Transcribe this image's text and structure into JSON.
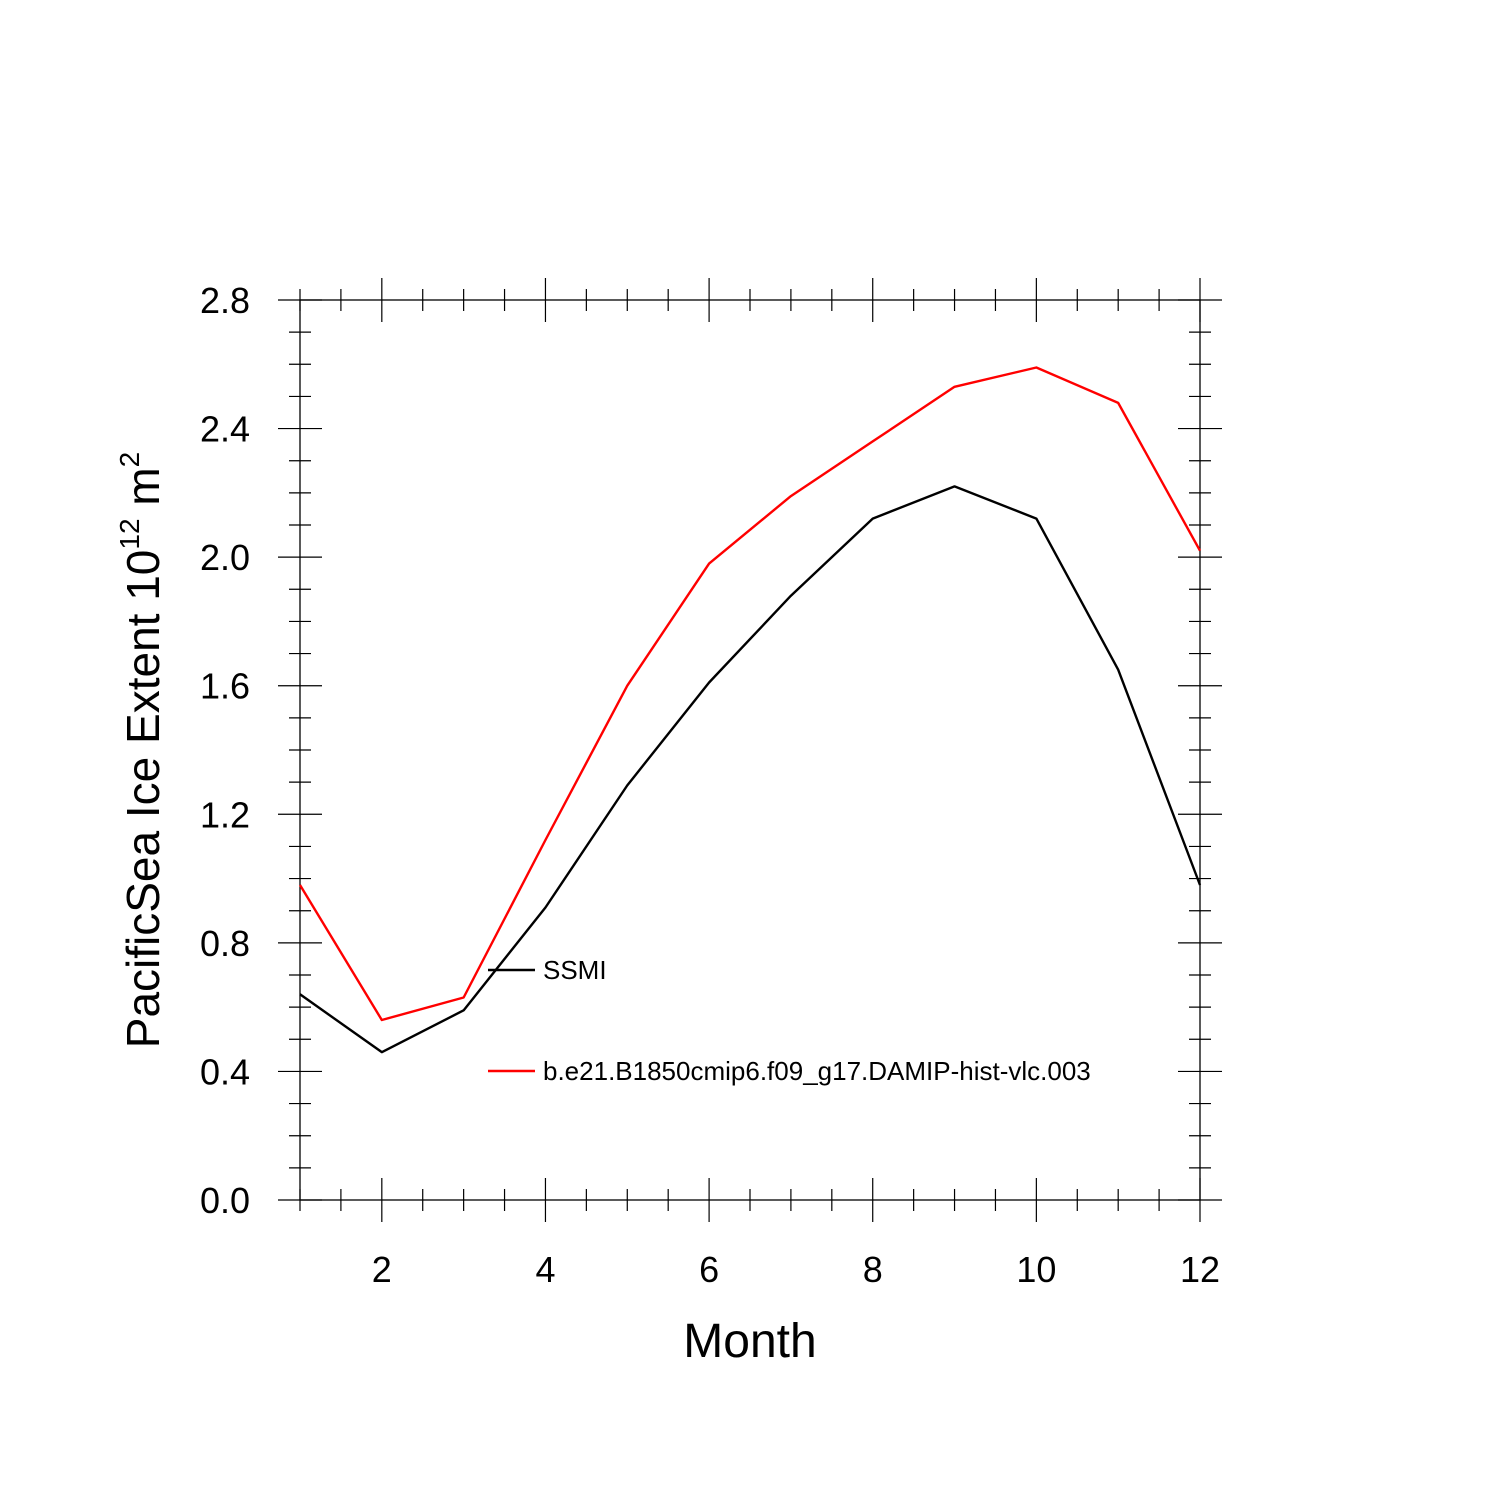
{
  "chart_data": {
    "type": "line",
    "title": "",
    "xlabel": "Month",
    "ylabel_main": "PacificSea Ice Extent 10",
    "ylabel_exp": "12",
    "ylabel_unit": " m",
    "ylabel_unit_exp": "2",
    "xlim": [
      1,
      12
    ],
    "ylim": [
      0.0,
      2.8
    ],
    "x": [
      1,
      2,
      3,
      4,
      5,
      6,
      7,
      8,
      9,
      10,
      11,
      12
    ],
    "x_ticks": [
      2,
      4,
      6,
      8,
      10,
      12
    ],
    "x_tick_labels": [
      "2",
      "4",
      "6",
      "8",
      "10",
      "12"
    ],
    "y_ticks": [
      0.0,
      0.4,
      0.8,
      1.2,
      1.6,
      2.0,
      2.4,
      2.8
    ],
    "y_tick_labels": [
      "0.0",
      "0.4",
      "0.8",
      "1.2",
      "1.6",
      "2.0",
      "2.4",
      "2.8"
    ],
    "grid": false,
    "legend_placement": "inside-lower-center",
    "series": [
      {
        "name": "SSMI",
        "color": "#000000",
        "values": [
          0.64,
          0.46,
          0.59,
          0.91,
          1.29,
          1.61,
          1.88,
          2.12,
          2.22,
          2.12,
          1.65,
          0.98
        ]
      },
      {
        "name": "b.e21.B1850cmip6.f09_g17.DAMIP-hist-vlc.003",
        "color": "#ff0000",
        "values": [
          0.98,
          0.56,
          0.63,
          1.12,
          1.6,
          1.98,
          2.19,
          2.36,
          2.53,
          2.59,
          2.48,
          2.02
        ]
      }
    ]
  }
}
